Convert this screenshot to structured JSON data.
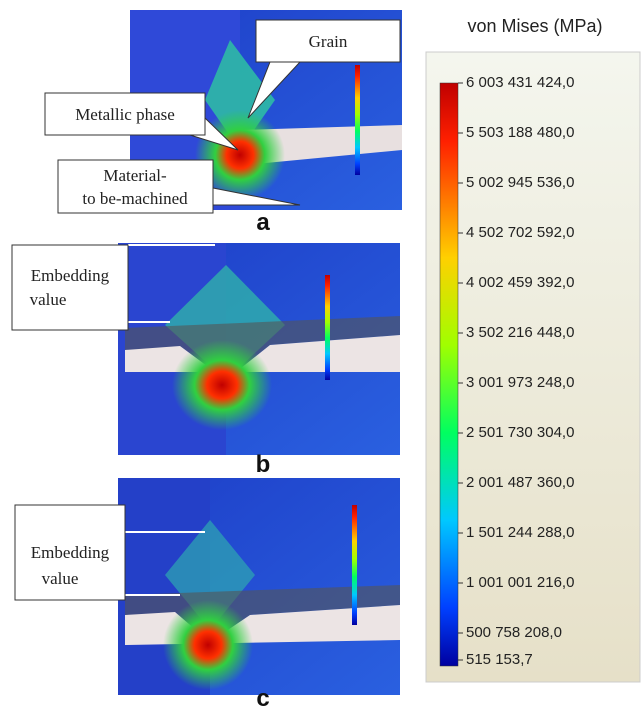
{
  "panels": [
    {
      "label": "a",
      "annotations": {
        "grain": "Grain",
        "metallic": "Metallic phase",
        "material": [
          "Material-",
          "to be-machined"
        ]
      }
    },
    {
      "label": "b",
      "annotations": {
        "embedding": [
          "Embedding",
          "value"
        ]
      }
    },
    {
      "label": "c",
      "annotations": {
        "embedding": [
          "Embedding",
          "value"
        ]
      }
    }
  ],
  "legend": {
    "title": "von Mises (MPa)",
    "ticks": [
      "6 003 431 424,0",
      "5 503 188 480,0",
      "5 002 945 536,0",
      "4 502 702 592,0",
      "4 002 459 392,0",
      "3 502 216 448,0",
      "3 001 973 248,0",
      "2 501 730 304,0",
      "2 001 487 360,0",
      "1 501 244 288,0",
      "1 001 001 216,0",
      "500 758 208,0",
      "515 153,7"
    ]
  }
}
